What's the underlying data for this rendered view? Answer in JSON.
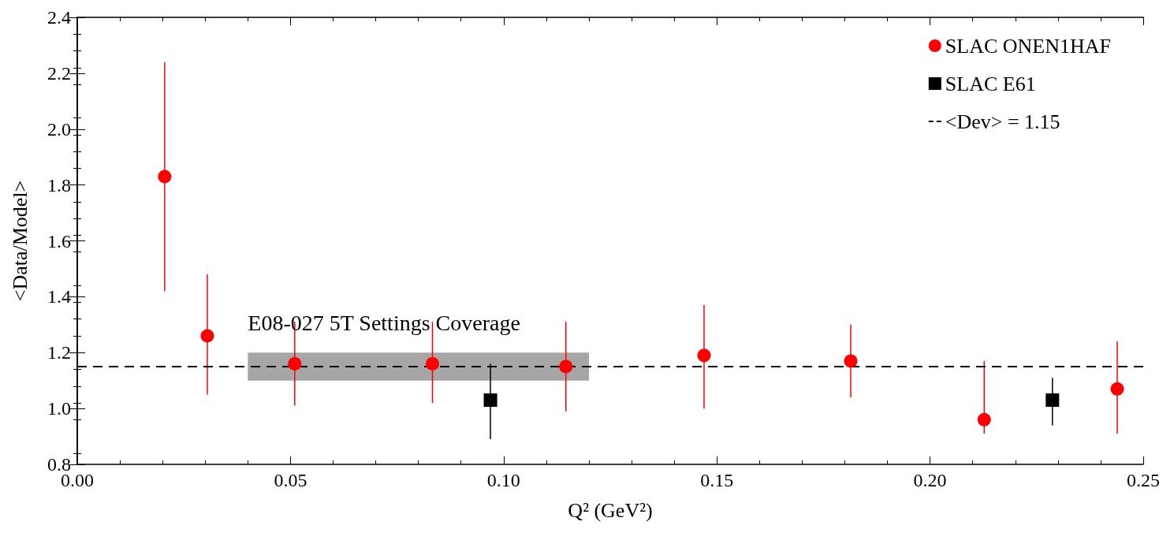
{
  "chart_data": {
    "type": "scatter",
    "xlabel": "Q² (GeV²)",
    "ylabel": "<Data/Model>",
    "series": [
      {
        "name": "SLAC ONEN1HAF",
        "color": "#ff0000",
        "marker": "circle",
        "x": [
          0.0205,
          0.0305,
          0.051,
          0.0833,
          0.1146,
          0.147,
          0.1814,
          0.2127,
          0.2439
        ],
        "values": [
          1.83,
          1.26,
          1.16,
          1.16,
          1.15,
          1.19,
          1.17,
          0.96,
          1.07
        ],
        "errors": [
          [
            1.42,
            2.24
          ],
          [
            1.05,
            1.48
          ],
          [
            1.01,
            1.31
          ],
          [
            1.02,
            1.31
          ],
          [
            0.99,
            1.31
          ],
          [
            1.0,
            1.37
          ],
          [
            1.04,
            1.3
          ],
          [
            0.91,
            1.17
          ],
          [
            0.91,
            1.24
          ]
        ]
      },
      {
        "name": "SLAC E61",
        "color": "#000000",
        "marker": "square",
        "x": [
          0.0969,
          0.2287
        ],
        "values": [
          1.03,
          1.03
        ],
        "errors": [
          [
            0.89,
            1.16
          ],
          [
            0.94,
            1.11
          ]
        ]
      },
      {
        "type": "area",
        "color": "#a6a6a6",
        "x": [
          0.04,
          0.12
        ],
        "values": [
          null,
          null
        ],
        "lower": [
          1.1,
          1.1
        ],
        "upper": [
          1.2,
          1.2
        ]
      }
    ],
    "annotations": [
      {
        "text": "E08-027 5T Settings Coverage",
        "x": 0.04,
        "y": 1.2
      }
    ],
    "ref_lines": [
      {
        "axis": "y",
        "value": 1.15,
        "label": "<Dev> = 1.15",
        "color": "#000000",
        "line_style": "dashed"
      }
    ],
    "xlim": [
      0,
      0.25
    ],
    "xticks": [
      {
        "value": 0,
        "label": "0.00"
      },
      {
        "value": 0.05,
        "label": "0.05"
      },
      {
        "value": 0.1,
        "label": "0.10"
      },
      {
        "value": 0.15,
        "label": "0.15"
      },
      {
        "value": 0.2,
        "label": "0.20"
      },
      {
        "value": 0.25,
        "label": "0.25"
      }
    ],
    "ylim": [
      0.8,
      2.4
    ],
    "yticks": [
      {
        "value": 0.8,
        "label": "0.8"
      },
      {
        "value": 1.0,
        "label": "1.0"
      },
      {
        "value": 1.2,
        "label": "1.2"
      },
      {
        "value": 1.4,
        "label": "1.4"
      },
      {
        "value": 1.6,
        "label": "1.6"
      },
      {
        "value": 1.8,
        "label": "1.8"
      },
      {
        "value": 2.0,
        "label": "2.0"
      },
      {
        "value": 2.2,
        "label": "2.2"
      },
      {
        "value": 2.4,
        "label": "2.4"
      }
    ],
    "grid": false,
    "legend": "top right"
  }
}
